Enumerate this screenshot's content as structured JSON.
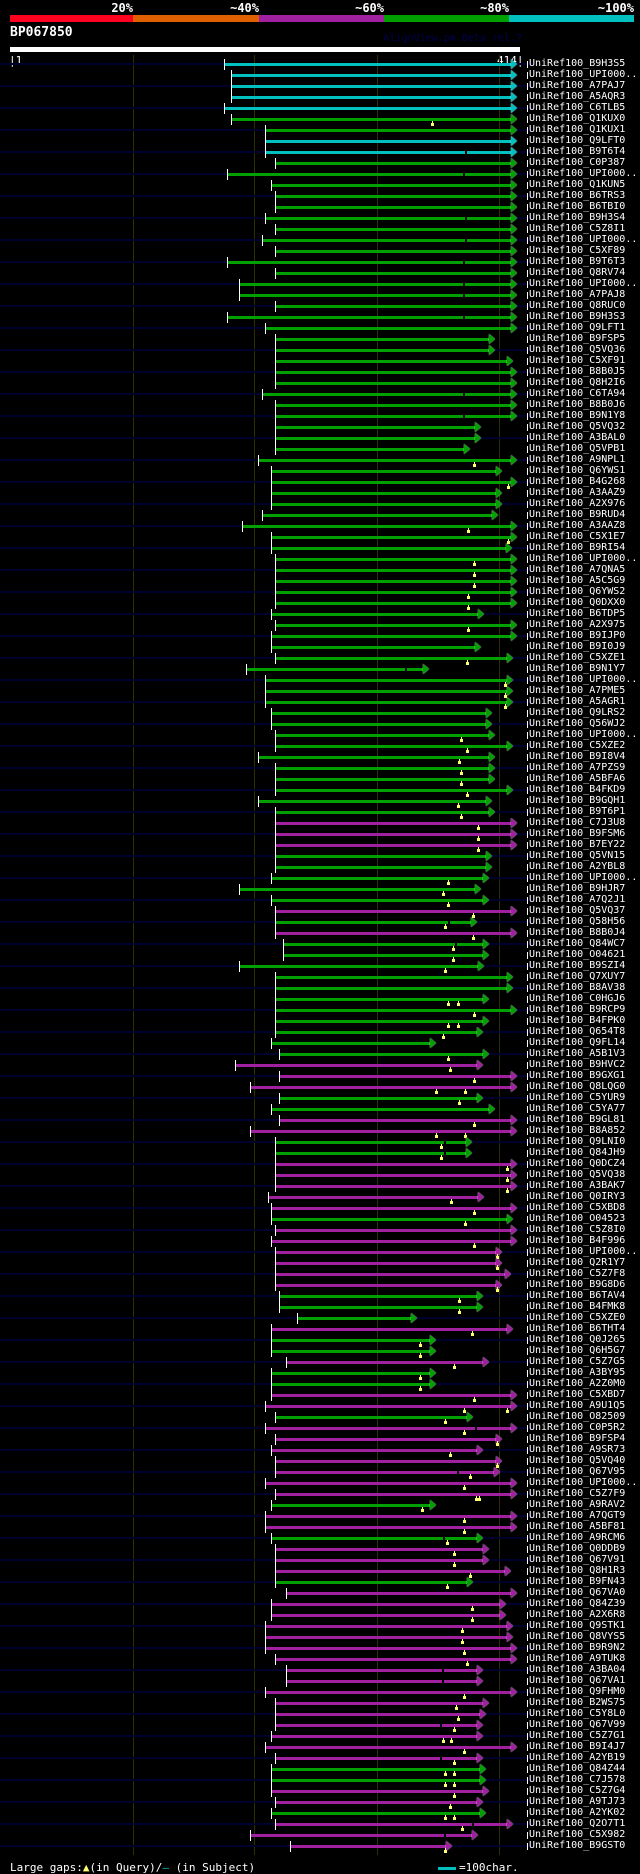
{
  "header": {
    "percent_labels": [
      "20%",
      "~40%",
      "~60%",
      "~80%",
      "~100%"
    ],
    "identity_colors": [
      "#ff0020",
      "#e06000",
      "#a020a0",
      "#00a000",
      "#00c0c0"
    ],
    "query_id": "BP067850",
    "watermark": "AlignView.pm Beta rel.7",
    "ruler_start": "|1",
    "ruler_end": "414|",
    "query_length": 414
  },
  "colors": {
    "c": "#00c0c0",
    "g": "#00a000",
    "m": "#a020a0",
    "navy": "#00002e",
    "gap_mark": "#ffff70"
  },
  "rows": [
    [
      "UniRef100_B9H3S5",
      "c",
      177,
      414,
      [],
      []
    ],
    [
      "UniRef100_UPI000..",
      "c",
      183,
      414,
      [],
      []
    ],
    [
      "UniRef100_A7PAJ7",
      "c",
      183,
      414,
      [],
      []
    ],
    [
      "UniRef100_A5AQR3",
      "c",
      183,
      414,
      [],
      []
    ],
    [
      "UniRef100_C6TLB5",
      "c",
      177,
      414,
      [],
      []
    ],
    [
      "UniRef100_Q1KUX0",
      "g",
      183,
      414,
      [
        348
      ],
      []
    ],
    [
      "UniRef100_Q1KUX1",
      "g",
      211,
      414,
      [],
      []
    ],
    [
      "UniRef100_Q9LFT0",
      "c",
      211,
      414,
      [],
      []
    ],
    [
      "UniRef100_B9T6T4",
      "c",
      211,
      414,
      [],
      [
        376
      ]
    ],
    [
      "UniRef100_C0P387",
      "g",
      219,
      414,
      [],
      []
    ],
    [
      "UniRef100_UPI000..",
      "g",
      179,
      414,
      [],
      [
        374
      ]
    ],
    [
      "UniRef100_Q1KUN5",
      "g",
      216,
      414,
      [],
      []
    ],
    [
      "UniRef100_B6TRS3",
      "g",
      219,
      414,
      [],
      []
    ],
    [
      "UniRef100_B6TBI0",
      "g",
      219,
      414,
      [],
      []
    ],
    [
      "UniRef100_B9H3S4",
      "g",
      211,
      414,
      [],
      [
        376
      ]
    ],
    [
      "UniRef100_C5Z8I1",
      "g",
      219,
      414,
      [],
      []
    ],
    [
      "UniRef100_UPI000..",
      "g",
      208,
      414,
      [],
      [
        376
      ]
    ],
    [
      "UniRef100_C5XF89",
      "g",
      219,
      414,
      [],
      []
    ],
    [
      "UniRef100_B9T6T3",
      "g",
      179,
      414,
      [],
      [
        374
      ]
    ],
    [
      "UniRef100_Q8RV74",
      "g",
      219,
      414,
      [],
      []
    ],
    [
      "UniRef100_UPI000..",
      "g",
      189,
      414,
      [],
      [
        374
      ]
    ],
    [
      "UniRef100_A7PAJ8",
      "g",
      189,
      414,
      [],
      [
        374
      ]
    ],
    [
      "UniRef100_Q8RUC0",
      "g",
      219,
      414,
      [],
      []
    ],
    [
      "UniRef100_B9H3S3",
      "g",
      179,
      414,
      [],
      [
        374
      ]
    ],
    [
      "UniRef100_Q9LFT1",
      "g",
      211,
      414,
      [],
      []
    ],
    [
      "UniRef100_B9FSP5",
      "g",
      219,
      396,
      [],
      []
    ],
    [
      "UniRef100_Q5VQ36",
      "g",
      219,
      396,
      [],
      []
    ],
    [
      "UniRef100_C5XF91",
      "g",
      219,
      411,
      [],
      []
    ],
    [
      "UniRef100_B8B0J5",
      "g",
      219,
      414,
      [],
      []
    ],
    [
      "UniRef100_Q8H2I6",
      "g",
      219,
      414,
      [],
      []
    ],
    [
      "UniRef100_C6TA94",
      "g",
      208,
      414,
      [],
      [
        374
      ]
    ],
    [
      "UniRef100_B8B0J6",
      "g",
      219,
      414,
      [],
      []
    ],
    [
      "UniRef100_B9N1Y8",
      "g",
      219,
      414,
      [],
      [
        374
      ]
    ],
    [
      "UniRef100_Q5VQ32",
      "g",
      219,
      384,
      [],
      []
    ],
    [
      "UniRef100_A3BAL0",
      "g",
      219,
      384,
      [],
      []
    ],
    [
      "UniRef100_Q5VPB1",
      "g",
      219,
      375,
      [],
      []
    ],
    [
      "UniRef100_A9NPL1",
      "g",
      205,
      414,
      [
        383
      ],
      []
    ],
    [
      "UniRef100_Q6YWS1",
      "g",
      216,
      402,
      [],
      []
    ],
    [
      "UniRef100_B4G268",
      "g",
      216,
      414,
      [
        411
      ],
      []
    ],
    [
      "UniRef100_A3AAZ9",
      "g",
      216,
      402,
      [],
      []
    ],
    [
      "UniRef100_A2X976",
      "g",
      216,
      402,
      [],
      []
    ],
    [
      "UniRef100_B9RUD4",
      "g",
      208,
      398,
      [],
      []
    ],
    [
      "UniRef100_A3AAZ8",
      "g",
      192,
      414,
      [
        378
      ],
      []
    ],
    [
      "UniRef100_C5X1E7",
      "g",
      216,
      414,
      [
        411
      ],
      []
    ],
    [
      "UniRef100_B9RI54",
      "g",
      216,
      410,
      [],
      []
    ],
    [
      "UniRef100_UPI000..",
      "g",
      219,
      414,
      [
        383
      ],
      []
    ],
    [
      "UniRef100_A7QNA5",
      "g",
      219,
      414,
      [
        383
      ],
      []
    ],
    [
      "UniRef100_A5C5G9",
      "g",
      219,
      414,
      [
        383
      ],
      []
    ],
    [
      "UniRef100_Q6YWS2",
      "g",
      219,
      414,
      [
        378
      ],
      []
    ],
    [
      "UniRef100_Q0DXX0",
      "g",
      219,
      414,
      [
        378
      ],
      []
    ],
    [
      "UniRef100_B6TDP5",
      "g",
      216,
      387,
      [],
      []
    ],
    [
      "UniRef100_A2X975",
      "g",
      219,
      414,
      [
        378
      ],
      []
    ],
    [
      "UniRef100_B9IJP0",
      "g",
      216,
      414,
      [],
      []
    ],
    [
      "UniRef100_B9I0J9",
      "g",
      216,
      384,
      [],
      []
    ],
    [
      "UniRef100_C5XZE1",
      "g",
      219,
      411,
      [
        377
      ],
      []
    ],
    [
      "UniRef100_B9N1Y7",
      "g",
      195,
      341,
      [],
      [
        326
      ]
    ],
    [
      "UniRef100_UPI000..",
      "g",
      211,
      411,
      [
        408
      ],
      []
    ],
    [
      "UniRef100_A7PME5",
      "g",
      211,
      411,
      [
        408
      ],
      []
    ],
    [
      "UniRef100_A5AGR1",
      "g",
      211,
      411,
      [
        408
      ],
      []
    ],
    [
      "UniRef100_Q9LRS2",
      "g",
      216,
      393,
      [],
      []
    ],
    [
      "UniRef100_Q56WJ2",
      "g",
      216,
      393,
      [],
      []
    ],
    [
      "UniRef100_UPI000..",
      "g",
      219,
      396,
      [
        372
      ],
      []
    ],
    [
      "UniRef100_C5XZE2",
      "g",
      219,
      411,
      [
        377
      ],
      []
    ],
    [
      "UniRef100_B9I8V4",
      "g",
      205,
      396,
      [
        370
      ],
      []
    ],
    [
      "UniRef100_A7PZS9",
      "g",
      219,
      396,
      [
        372
      ],
      []
    ],
    [
      "UniRef100_A5BFA6",
      "g",
      219,
      396,
      [
        372
      ],
      []
    ],
    [
      "UniRef100_B4FKD9",
      "g",
      219,
      411,
      [
        377
      ],
      []
    ],
    [
      "UniRef100_B9GQH1",
      "g",
      205,
      393,
      [
        369
      ],
      []
    ],
    [
      "UniRef100_B9T6P1",
      "g",
      219,
      396,
      [
        372
      ],
      []
    ],
    [
      "UniRef100_C7J3U8",
      "m",
      219,
      414,
      [
        386
      ],
      []
    ],
    [
      "UniRef100_B9FSM6",
      "m",
      219,
      414,
      [
        386
      ],
      []
    ],
    [
      "UniRef100_B7EY22",
      "m",
      219,
      414,
      [
        386
      ],
      []
    ],
    [
      "UniRef100_Q5VN15",
      "g",
      219,
      393,
      [],
      []
    ],
    [
      "UniRef100_A2YBL8",
      "g",
      219,
      393,
      [],
      []
    ],
    [
      "UniRef100_UPI000..",
      "g",
      216,
      391,
      [
        361
      ],
      []
    ],
    [
      "UniRef100_B9HJR7",
      "g",
      189,
      384,
      [
        357
      ],
      []
    ],
    [
      "UniRef100_A7Q2J1",
      "g",
      216,
      391,
      [
        361
      ],
      []
    ],
    [
      "UniRef100_Q5VQ37",
      "m",
      219,
      414,
      [
        382
      ],
      []
    ],
    [
      "UniRef100_Q58H56",
      "g",
      219,
      381,
      [
        359
      ],
      [
        362
      ]
    ],
    [
      "UniRef100_B8B0J4",
      "m",
      219,
      414,
      [
        382
      ],
      []
    ],
    [
      "UniRef100_Q84WC7",
      "g",
      226,
      391,
      [
        365
      ],
      [
        368
      ]
    ],
    [
      "UniRef100_O04621",
      "g",
      226,
      391,
      [
        365
      ],
      []
    ],
    [
      "UniRef100_B9SZI4",
      "g",
      189,
      387,
      [
        359
      ],
      []
    ],
    [
      "UniRef100_Q7XUY7",
      "g",
      219,
      411,
      [],
      []
    ],
    [
      "UniRef100_B8AV38",
      "g",
      219,
      411,
      [],
      []
    ],
    [
      "UniRef100_C0HGJ6",
      "g",
      219,
      391,
      [
        361,
        369
      ],
      []
    ],
    [
      "UniRef100_B9RCP9",
      "g",
      219,
      414,
      [
        383
      ],
      []
    ],
    [
      "UniRef100_B4FPK0",
      "g",
      219,
      391,
      [
        361,
        369
      ],
      []
    ],
    [
      "UniRef100_Q654T8",
      "g",
      219,
      386,
      [
        357
      ],
      []
    ],
    [
      "UniRef100_Q9FL14",
      "g",
      216,
      347,
      [],
      []
    ],
    [
      "UniRef100_A5B1V3",
      "g",
      222,
      391,
      [
        361
      ],
      []
    ],
    [
      "UniRef100_B9HVC2",
      "m",
      186,
      386,
      [
        363
      ],
      []
    ],
    [
      "UniRef100_B9GXG1",
      "m",
      222,
      414,
      [
        383
      ],
      []
    ],
    [
      "UniRef100_Q8LQG0",
      "m",
      198,
      414,
      [
        351,
        375
      ],
      []
    ],
    [
      "UniRef100_C5YUR9",
      "g",
      222,
      386,
      [
        370
      ],
      []
    ],
    [
      "UniRef100_C5YA77",
      "g",
      216,
      396,
      [],
      []
    ],
    [
      "UniRef100_B9GL81",
      "m",
      222,
      414,
      [
        383
      ],
      []
    ],
    [
      "UniRef100_B8A852",
      "m",
      198,
      414,
      [
        351,
        375
      ],
      []
    ],
    [
      "UniRef100_Q9LNI0",
      "g",
      219,
      377,
      [
        355
      ],
      [
        359
      ]
    ],
    [
      "UniRef100_Q84JH9",
      "g",
      219,
      377,
      [
        355
      ],
      [
        359
      ]
    ],
    [
      "UniRef100_Q0DCZ4",
      "m",
      219,
      414,
      [
        410
      ],
      []
    ],
    [
      "UniRef100_Q5VQ38",
      "m",
      219,
      414,
      [
        410
      ],
      []
    ],
    [
      "UniRef100_A3BAK7",
      "m",
      219,
      414,
      [
        410
      ],
      []
    ],
    [
      "UniRef100_Q0IRY3",
      "m",
      213,
      387,
      [
        364
      ],
      []
    ],
    [
      "UniRef100_C5XBD8",
      "m",
      216,
      414,
      [
        383
      ],
      []
    ],
    [
      "UniRef100_O04523",
      "g",
      216,
      411,
      [
        375
      ],
      []
    ],
    [
      "UniRef100_C5Z8I0",
      "m",
      219,
      414,
      [],
      []
    ],
    [
      "UniRef100_B4F996",
      "m",
      216,
      414,
      [
        383
      ],
      []
    ],
    [
      "UniRef100_UPI000..",
      "m",
      219,
      402,
      [
        402
      ],
      []
    ],
    [
      "UniRef100_Q2R1Y7",
      "m",
      219,
      402,
      [
        402
      ],
      []
    ],
    [
      "UniRef100_C5Z7F8",
      "m",
      219,
      409,
      [],
      []
    ],
    [
      "UniRef100_B9G8D6",
      "m",
      219,
      402,
      [
        402
      ],
      []
    ],
    [
      "UniRef100_B6TAV4",
      "g",
      222,
      386,
      [
        370
      ],
      []
    ],
    [
      "UniRef100_B4FMK8",
      "g",
      222,
      386,
      [
        370
      ],
      []
    ],
    [
      "UniRef100_C5XZE0",
      "g",
      237,
      331,
      [],
      []
    ],
    [
      "UniRef100_B6THT4",
      "m",
      216,
      411,
      [
        381
      ],
      []
    ],
    [
      "UniRef100_Q0J265",
      "g",
      216,
      347,
      [
        338
      ],
      []
    ],
    [
      "UniRef100_Q6H5G7",
      "g",
      216,
      347,
      [
        338
      ],
      []
    ],
    [
      "UniRef100_C5Z7G5",
      "m",
      228,
      391,
      [
        366
      ],
      []
    ],
    [
      "UniRef100_A3BY95",
      "g",
      216,
      347,
      [
        338
      ],
      []
    ],
    [
      "UniRef100_A2Z0M0",
      "g",
      216,
      347,
      [
        338
      ],
      []
    ],
    [
      "UniRef100_C5XBD7",
      "m",
      216,
      414,
      [
        383
      ],
      []
    ],
    [
      "UniRef100_A9U1Q5",
      "m",
      211,
      414,
      [
        374,
        410
      ],
      []
    ],
    [
      "UniRef100_O82509",
      "g",
      219,
      378,
      [
        359
      ],
      []
    ],
    [
      "UniRef100_C0P5R2",
      "m",
      211,
      414,
      [
        374
      ],
      [
        384
      ]
    ],
    [
      "UniRef100_B9FSP4",
      "m",
      219,
      402,
      [
        402
      ],
      []
    ],
    [
      "UniRef100_A9SR73",
      "m",
      216,
      386,
      [
        363
      ],
      []
    ],
    [
      "UniRef100_Q5VQ40",
      "m",
      219,
      402,
      [
        402
      ],
      []
    ],
    [
      "UniRef100_Q67V95",
      "m",
      219,
      400,
      [
        379
      ],
      [
        369
      ]
    ],
    [
      "UniRef100_UPI000..",
      "m",
      211,
      414,
      [
        374
      ],
      []
    ],
    [
      "UniRef100_C5Z7F9",
      "m",
      219,
      414,
      [
        384,
        387
      ],
      []
    ],
    [
      "UniRef100_A9RAV2",
      "g",
      216,
      347,
      [
        340
      ],
      []
    ],
    [
      "UniRef100_A7QGT9",
      "m",
      211,
      414,
      [
        374
      ],
      []
    ],
    [
      "UniRef100_A5BF81",
      "m",
      211,
      414,
      [
        374
      ],
      []
    ],
    [
      "UniRef100_A9RCM6",
      "g",
      216,
      386,
      [
        360
      ],
      [
        358
      ]
    ],
    [
      "UniRef100_Q0DDB9",
      "m",
      219,
      391,
      [
        366
      ],
      []
    ],
    [
      "UniRef100_Q67V91",
      "m",
      219,
      391,
      [
        366
      ],
      []
    ],
    [
      "UniRef100_Q8H1R3",
      "m",
      219,
      409,
      [
        379
      ],
      []
    ],
    [
      "UniRef100_B9FN43",
      "g",
      219,
      378,
      [
        360
      ],
      []
    ],
    [
      "UniRef100_Q67VA0",
      "m",
      228,
      414,
      [],
      []
    ],
    [
      "UniRef100_Q84Z39",
      "m",
      216,
      405,
      [
        381
      ],
      []
    ],
    [
      "UniRef100_A2X6R8",
      "m",
      216,
      405,
      [
        381
      ],
      []
    ],
    [
      "UniRef100_Q9STK1",
      "m",
      211,
      411,
      [
        373
      ],
      []
    ],
    [
      "UniRef100_Q8VYS5",
      "m",
      211,
      411,
      [
        373
      ],
      []
    ],
    [
      "UniRef100_B9R9N2",
      "m",
      211,
      414,
      [
        374
      ],
      []
    ],
    [
      "UniRef100_A9TUK8",
      "m",
      219,
      414,
      [
        377
      ],
      []
    ],
    [
      "UniRef100_A3BA04",
      "m",
      228,
      386,
      [],
      [
        357
      ]
    ],
    [
      "UniRef100_Q67VA1",
      "m",
      228,
      386,
      [],
      [
        357
      ]
    ],
    [
      "UniRef100_Q9FHM0",
      "m",
      211,
      414,
      [
        374
      ],
      []
    ],
    [
      "UniRef100_B2WS75",
      "m",
      219,
      391,
      [
        368
      ],
      []
    ],
    [
      "UniRef100_C5Y8L0",
      "m",
      219,
      388,
      [
        369
      ],
      []
    ],
    [
      "UniRef100_Q67V99",
      "m",
      219,
      386,
      [
        366
      ],
      [
        355
      ]
    ],
    [
      "UniRef100_C5Z7G1",
      "m",
      216,
      386,
      [
        357,
        364
      ],
      []
    ],
    [
      "UniRef100_B9I4J7",
      "m",
      211,
      414,
      [
        374
      ],
      []
    ],
    [
      "UniRef100_A2YB19",
      "m",
      219,
      386,
      [
        366
      ],
      [
        355
      ]
    ],
    [
      "UniRef100_Q84Z44",
      "g",
      216,
      388,
      [
        359,
        366
      ],
      []
    ],
    [
      "UniRef100_C7J578",
      "g",
      216,
      388,
      [
        359,
        366
      ],
      []
    ],
    [
      "UniRef100_C5Z7G4",
      "m",
      216,
      391,
      [
        366
      ],
      []
    ],
    [
      "UniRef100_A9TJ73",
      "m",
      219,
      386,
      [
        363
      ],
      []
    ],
    [
      "UniRef100_A2YK02",
      "g",
      216,
      388,
      [
        359,
        366
      ],
      []
    ],
    [
      "UniRef100_Q2O7T1",
      "m",
      219,
      411,
      [
        373
      ],
      [
        382
      ]
    ],
    [
      "UniRef100_C5X982",
      "m",
      198,
      382,
      [],
      [
        359
      ]
    ],
    [
      "UniRef100_B9GST0",
      "m",
      231,
      360,
      [
        359
      ],
      []
    ]
  ],
  "footer": {
    "gaps_label": "Large gaps:",
    "query_gap_symbol": "▲",
    "query_gap_text": "(in Query)/",
    "subject_gap_symbol": "–",
    "subject_gap_text": " (in Subject)",
    "scale_label": "=100char."
  }
}
